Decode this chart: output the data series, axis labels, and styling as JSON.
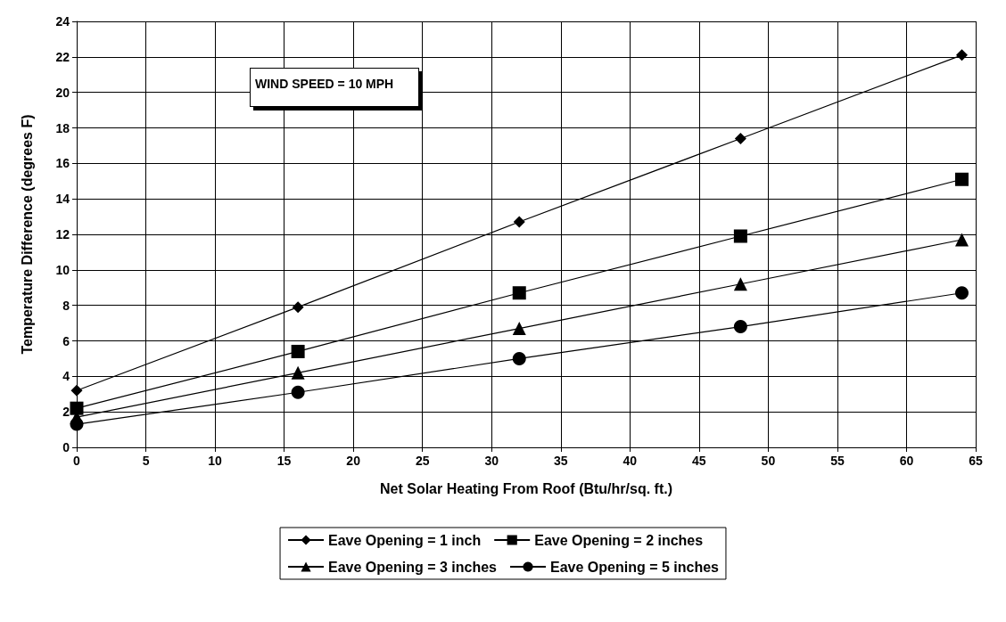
{
  "chart_data": {
    "type": "line",
    "xlabel": "Net Solar Heating From Roof (Btu/hr/sq. ft.)",
    "ylabel": "Temperature Difference (degrees F)",
    "annotations": [
      "WIND SPEED = 10 MPH"
    ],
    "x": [
      0,
      16,
      32,
      48,
      64
    ],
    "series": [
      {
        "name": "Eave Opening = 1 inch",
        "color": "#000000",
        "marker": "diamond",
        "values": [
          3.2,
          7.9,
          12.7,
          17.4,
          22.1
        ]
      },
      {
        "name": "Eave Opening = 2 inches",
        "color": "#000000",
        "marker": "square",
        "values": [
          2.2,
          5.4,
          8.7,
          11.9,
          15.1
        ]
      },
      {
        "name": "Eave Opening = 3 inches",
        "color": "#000000",
        "marker": "triangle",
        "values": [
          1.7,
          4.2,
          6.7,
          9.2,
          11.7
        ]
      },
      {
        "name": "Eave Opening = 5 inches",
        "color": "#000000",
        "marker": "circle",
        "values": [
          1.3,
          3.1,
          5.0,
          6.8,
          8.7
        ]
      }
    ],
    "xlim": [
      0,
      65
    ],
    "xticks": [
      0,
      5,
      10,
      15,
      20,
      25,
      30,
      35,
      40,
      45,
      50,
      55,
      60,
      65
    ],
    "ylim": [
      0,
      24
    ],
    "yticks": [
      0,
      2,
      4,
      6,
      8,
      10,
      12,
      14,
      16,
      18,
      20,
      22,
      24
    ],
    "grid": true,
    "legend": "bottom",
    "line_style": "solid"
  }
}
